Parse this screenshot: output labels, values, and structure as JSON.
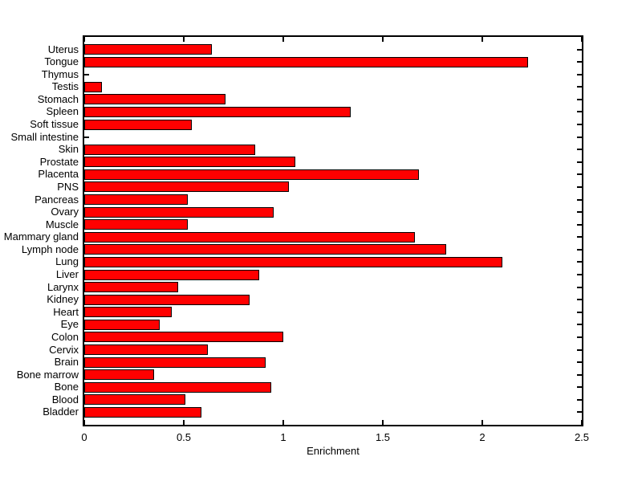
{
  "figure": {
    "background": "#ffffff",
    "axis_color": "#000000",
    "text_color": "#000000"
  },
  "chart_data": {
    "type": "bar",
    "orientation": "horizontal",
    "title": "",
    "xlabel": "Enrichment",
    "ylabel": "",
    "xlim": [
      0,
      2.5
    ],
    "xtick_values": [
      0,
      0.5,
      1,
      1.5,
      2,
      2.5
    ],
    "xtick_labels": [
      "0",
      "0.5",
      "1",
      "1.5",
      "2",
      "2.5"
    ],
    "grid": false,
    "legend": false,
    "bar_color": "#ff0000",
    "bar_edge_color": "#000000",
    "category_order": "top-to-bottom",
    "categories": [
      "Uterus",
      "Tongue",
      "Thymus",
      "Testis",
      "Stomach",
      "Spleen",
      "Soft tissue",
      "Small intestine",
      "Skin",
      "Prostate",
      "Placenta",
      "PNS",
      "Pancreas",
      "Ovary",
      "Muscle",
      "Mammary gland",
      "Lymph node",
      "Lung",
      "Liver",
      "Larynx",
      "Kidney",
      "Heart",
      "Eye",
      "Colon",
      "Cervix",
      "Brain",
      "Bone marrow",
      "Bone",
      "Blood",
      "Bladder"
    ],
    "values": [
      0.64,
      2.23,
      0,
      0.09,
      0.71,
      1.34,
      0.54,
      0,
      0.86,
      1.06,
      1.68,
      1.03,
      0.52,
      0.95,
      0.52,
      1.66,
      1.82,
      2.1,
      0.88,
      0.47,
      0.83,
      0.44,
      0.38,
      1.0,
      0.62,
      0.91,
      0.35,
      0.94,
      0.51,
      0.59
    ]
  }
}
